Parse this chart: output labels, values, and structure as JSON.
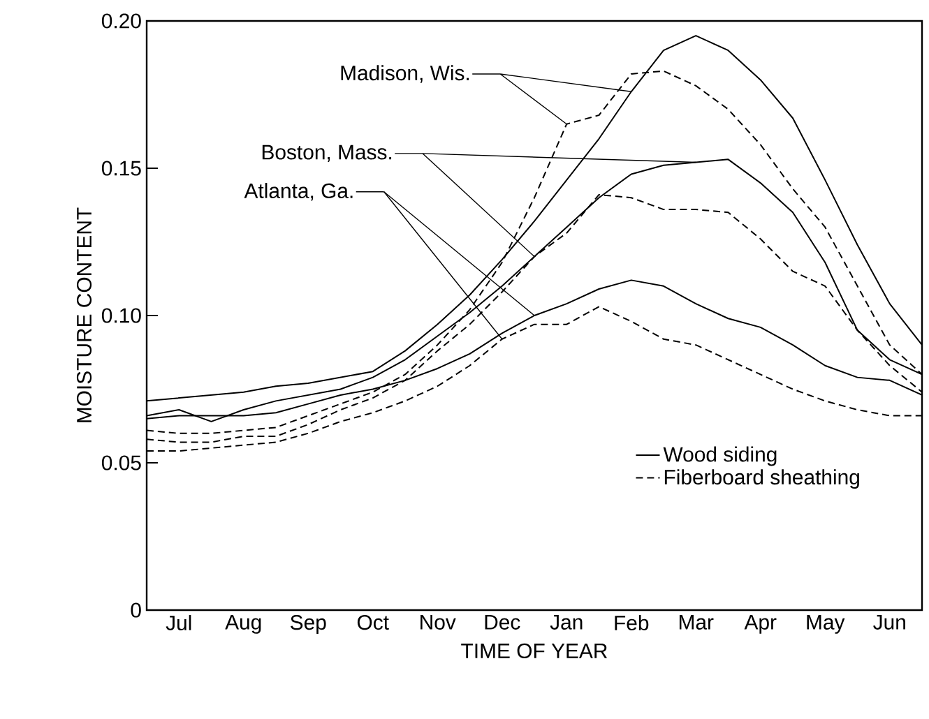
{
  "chart_data": {
    "type": "line",
    "xlabel": "TIME OF YEAR",
    "ylabel": "MOISTURE CONTENT",
    "categories": [
      null,
      "Jul",
      null,
      "Aug",
      null,
      "Sep",
      null,
      "Oct",
      null,
      "Nov",
      null,
      "Dec",
      null,
      "Jan",
      null,
      "Feb",
      null,
      "Mar",
      null,
      "Apr",
      null,
      "May",
      null,
      "Jun",
      null
    ],
    "ylim": [
      0,
      0.2
    ],
    "yticks": [
      0,
      {
        "value": 0.05,
        "label": "0.05"
      },
      {
        "value": 0.1,
        "label": "0.10"
      },
      {
        "value": 0.15,
        "label": "0.15"
      },
      {
        "value": 0.2,
        "label": "0.20"
      }
    ],
    "legend": "bottom right",
    "grid": false,
    "marker": "none",
    "series": [
      {
        "name": "Wood siding",
        "color": "#000000",
        "line_style": "solid",
        "values": [
          0.071,
          0.072,
          0.073,
          0.074,
          0.076,
          0.077,
          0.079,
          0.081,
          0.088,
          0.097,
          0.107,
          0.119,
          0.132,
          0.146,
          0.16,
          0.176,
          0.19,
          0.195,
          0.19,
          0.18,
          0.167,
          0.146,
          0.124,
          0.104,
          0.09
        ]
      },
      {
        "name": "Fiberboard sheathing",
        "color": "#000000",
        "line_style": "dashed",
        "values": [
          0.061,
          0.06,
          0.06,
          0.061,
          0.062,
          0.066,
          0.07,
          0.074,
          0.08,
          0.09,
          0.102,
          0.118,
          0.14,
          0.165,
          0.168,
          0.182,
          0.183,
          0.178,
          0.17,
          0.158,
          0.143,
          0.13,
          0.11,
          0.09,
          0.08
        ]
      },
      {
        "color": "#000000",
        "line_style": "solid",
        "values": [
          0.066,
          0.068,
          0.064,
          0.068,
          0.071,
          0.073,
          0.075,
          0.079,
          0.085,
          0.093,
          0.101,
          0.11,
          0.12,
          0.13,
          0.14,
          0.148,
          0.151,
          0.152,
          0.153,
          0.145,
          0.135,
          0.118,
          0.095,
          0.085,
          0.08
        ]
      },
      {
        "color": "#000000",
        "line_style": "dashed",
        "values": [
          0.058,
          0.057,
          0.057,
          0.059,
          0.059,
          0.063,
          0.068,
          0.072,
          0.078,
          0.088,
          0.097,
          0.108,
          0.12,
          0.128,
          0.141,
          0.14,
          0.136,
          0.136,
          0.135,
          0.126,
          0.115,
          0.11,
          0.095,
          0.083,
          0.074
        ]
      },
      {
        "color": "#000000",
        "line_style": "solid",
        "values": [
          0.065,
          0.066,
          0.066,
          0.066,
          0.067,
          0.07,
          0.073,
          0.075,
          0.078,
          0.082,
          0.087,
          0.094,
          0.1,
          0.104,
          0.109,
          0.112,
          0.11,
          0.104,
          0.099,
          0.096,
          0.09,
          0.083,
          0.079,
          0.078,
          0.073
        ]
      },
      {
        "color": "#000000",
        "line_style": "dashed",
        "values": [
          0.054,
          0.054,
          0.055,
          0.056,
          0.057,
          0.06,
          0.064,
          0.067,
          0.071,
          0.076,
          0.083,
          0.092,
          0.097,
          0.097,
          0.103,
          0.098,
          0.092,
          0.09,
          0.085,
          0.08,
          0.075,
          0.071,
          0.068,
          0.066,
          0.066
        ]
      }
    ],
    "annotations": [
      "Madison, Wis.",
      "Boston, Mass.",
      "Atlanta, Ga."
    ]
  }
}
